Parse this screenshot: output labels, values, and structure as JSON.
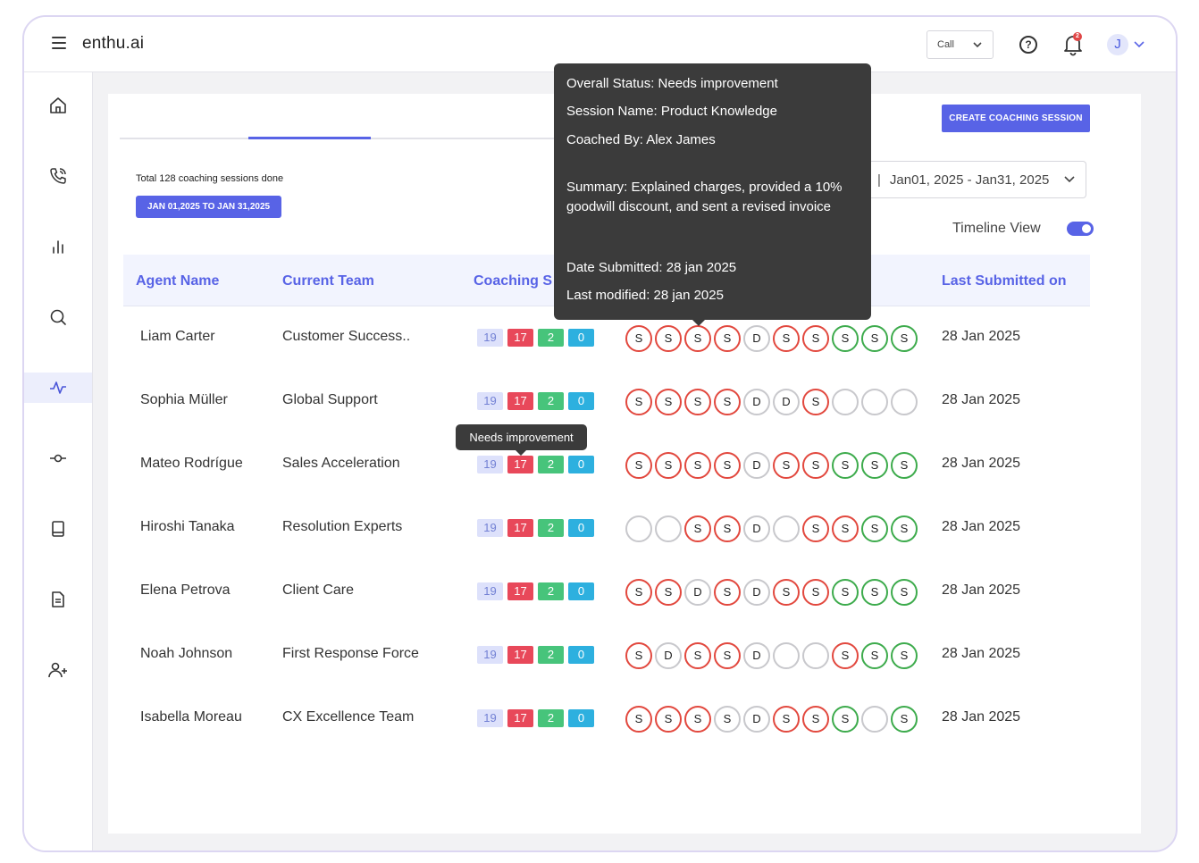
{
  "app": {
    "title": "enthu.ai"
  },
  "header": {
    "call_select": "Call",
    "avatar_initial": "J"
  },
  "toolbar": {
    "create_label": "CREATE COACHING SESSION",
    "total_text": "Total 128 coaching sessions done",
    "date_badge": "JAN 01,2025 TO JAN 31,2025",
    "date_range": "Jan01, 2025 - Jan31, 2025",
    "timeline_label": "Timeline View",
    "timeline_on": true
  },
  "table": {
    "columns": [
      "Agent Name",
      "Current Team",
      "Coaching S",
      "Last Submitted on"
    ],
    "rows": [
      {
        "agent": "Liam Carter",
        "team": "Customer Success..",
        "counts": [
          "19",
          "17",
          "2",
          "0"
        ],
        "sessions": [
          [
            "S",
            "red"
          ],
          [
            "S",
            "red"
          ],
          [
            "S",
            "red"
          ],
          [
            "S",
            "red"
          ],
          [
            "D",
            "gray"
          ],
          [
            "S",
            "red"
          ],
          [
            "S",
            "red"
          ],
          [
            "S",
            "green"
          ],
          [
            "S",
            "green"
          ],
          [
            "S",
            "green"
          ]
        ],
        "last": "28 Jan 2025"
      },
      {
        "agent": "Sophia Müller",
        "team": "Global Support",
        "counts": [
          "19",
          "17",
          "2",
          "0"
        ],
        "sessions": [
          [
            "S",
            "red"
          ],
          [
            "S",
            "red"
          ],
          [
            "S",
            "red"
          ],
          [
            "S",
            "red"
          ],
          [
            "D",
            "gray"
          ],
          [
            "D",
            "gray"
          ],
          [
            "S",
            "red"
          ],
          [
            "",
            "gray"
          ],
          [
            "",
            "gray"
          ],
          [
            "",
            "gray"
          ]
        ],
        "last": "28 Jan 2025"
      },
      {
        "agent": "Mateo Rodrígue",
        "team": "Sales Acceleration",
        "counts": [
          "19",
          "17",
          "2",
          "0"
        ],
        "sessions": [
          [
            "S",
            "red"
          ],
          [
            "S",
            "red"
          ],
          [
            "S",
            "red"
          ],
          [
            "S",
            "red"
          ],
          [
            "D",
            "gray"
          ],
          [
            "S",
            "red"
          ],
          [
            "S",
            "red"
          ],
          [
            "S",
            "green"
          ],
          [
            "S",
            "green"
          ],
          [
            "S",
            "green"
          ]
        ],
        "last": "28 Jan 2025"
      },
      {
        "agent": "Hiroshi Tanaka",
        "team": "Resolution Experts",
        "counts": [
          "19",
          "17",
          "2",
          "0"
        ],
        "sessions": [
          [
            "",
            "gray"
          ],
          [
            "",
            "gray"
          ],
          [
            "S",
            "red"
          ],
          [
            "S",
            "red"
          ],
          [
            "D",
            "gray"
          ],
          [
            "",
            "gray"
          ],
          [
            "S",
            "red"
          ],
          [
            "S",
            "red"
          ],
          [
            "S",
            "green"
          ],
          [
            "S",
            "green"
          ]
        ],
        "last": "28 Jan 2025"
      },
      {
        "agent": "Elena Petrova",
        "team": "Client Care",
        "counts": [
          "19",
          "17",
          "2",
          "0"
        ],
        "sessions": [
          [
            "S",
            "red"
          ],
          [
            "S",
            "red"
          ],
          [
            "D",
            "gray"
          ],
          [
            "S",
            "red"
          ],
          [
            "D",
            "gray"
          ],
          [
            "S",
            "red"
          ],
          [
            "S",
            "red"
          ],
          [
            "S",
            "green"
          ],
          [
            "S",
            "green"
          ],
          [
            "S",
            "green"
          ]
        ],
        "last": "28 Jan 2025"
      },
      {
        "agent": "Noah Johnson",
        "team": "First Response Force",
        "counts": [
          "19",
          "17",
          "2",
          "0"
        ],
        "sessions": [
          [
            "S",
            "red"
          ],
          [
            "D",
            "gray"
          ],
          [
            "S",
            "red"
          ],
          [
            "S",
            "red"
          ],
          [
            "D",
            "gray"
          ],
          [
            "",
            "gray"
          ],
          [
            "",
            "gray"
          ],
          [
            "S",
            "red"
          ],
          [
            "S",
            "green"
          ],
          [
            "S",
            "green"
          ]
        ],
        "last": "28 Jan 2025"
      },
      {
        "agent": "Isabella Moreau",
        "team": "CX Excellence Team",
        "counts": [
          "19",
          "17",
          "2",
          "0"
        ],
        "sessions": [
          [
            "S",
            "red"
          ],
          [
            "S",
            "red"
          ],
          [
            "S",
            "red"
          ],
          [
            "S",
            "gray"
          ],
          [
            "D",
            "gray"
          ],
          [
            "S",
            "red"
          ],
          [
            "S",
            "red"
          ],
          [
            "S",
            "green"
          ],
          [
            "",
            "gray"
          ],
          [
            "S",
            "green"
          ]
        ],
        "last": "28 Jan 2025"
      }
    ]
  },
  "tooltip": {
    "status": "Overall Status: Needs improvement",
    "session": "Session Name: Product Knowledge",
    "coached": "Coached By: Alex James",
    "summary": "Summary: Explained charges, provided a 10% goodwill discount, and sent a revised invoice",
    "submitted": "Date Submitted: 28 jan 2025",
    "modified": "Last modified: 28 jan 2025"
  },
  "small_tooltip": "Needs improvement",
  "icons": {
    "sidebar": [
      "home-icon",
      "phone-icon",
      "bar-chart-icon",
      "search-icon",
      "activity-icon",
      "commit-icon",
      "book-icon",
      "document-icon",
      "add-user-icon"
    ]
  },
  "colors": {
    "accent": "#5863e6",
    "red": "#e8485a",
    "green": "#47c47b",
    "blue": "#2db0df"
  }
}
